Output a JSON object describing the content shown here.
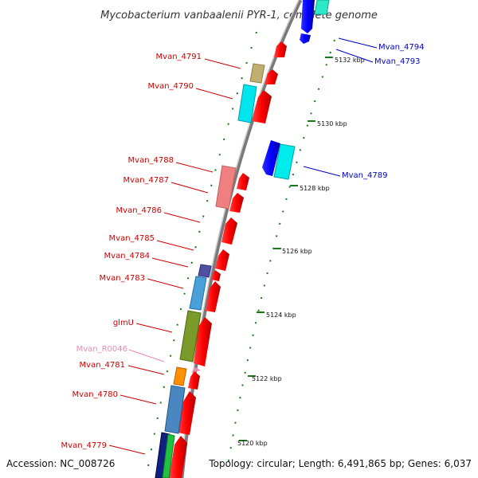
{
  "title": "Mycobacterium vanbaalenii PYR-1, complete genome",
  "footer": {
    "accession": "Accession: NC_008726",
    "summary": "Topology: circular; Length: 6,491,865 bp; Genes: 6,037"
  },
  "colors": {
    "plus_strand_label": "#cc0000",
    "minus_strand_label": "#0000cc",
    "rna_label": "#e88ab0",
    "backbone": "#888888",
    "tick": "#1a7a1a"
  },
  "scale_ticks": [
    "5120 kbp",
    "5122 kbp",
    "5124 kbp",
    "5126 kbp",
    "5128 kbp",
    "5130 kbp",
    "5132 kbp"
  ],
  "genes_left": [
    {
      "name": "Mvan_4791",
      "color": "#cc0000"
    },
    {
      "name": "Mvan_4790",
      "color": "#cc0000"
    },
    {
      "name": "Mvan_4788",
      "color": "#cc0000"
    },
    {
      "name": "Mvan_4787",
      "color": "#cc0000"
    },
    {
      "name": "Mvan_4786",
      "color": "#cc0000"
    },
    {
      "name": "Mvan_4785",
      "color": "#cc0000"
    },
    {
      "name": "Mvan_4784",
      "color": "#cc0000"
    },
    {
      "name": "Mvan_4783",
      "color": "#cc0000"
    },
    {
      "name": "glmU",
      "color": "#cc0000"
    },
    {
      "name": "Mvan_R0046",
      "color": "#e88ab0"
    },
    {
      "name": "Mvan_4781",
      "color": "#cc0000"
    },
    {
      "name": "Mvan_4780",
      "color": "#cc0000"
    },
    {
      "name": "Mvan_4779",
      "color": "#cc0000"
    }
  ],
  "genes_right": [
    {
      "name": "Mvan_4794",
      "color": "#0000cc"
    },
    {
      "name": "Mvan_4793",
      "color": "#0000cc"
    },
    {
      "name": "Mvan_4789",
      "color": "#0000cc"
    }
  ]
}
